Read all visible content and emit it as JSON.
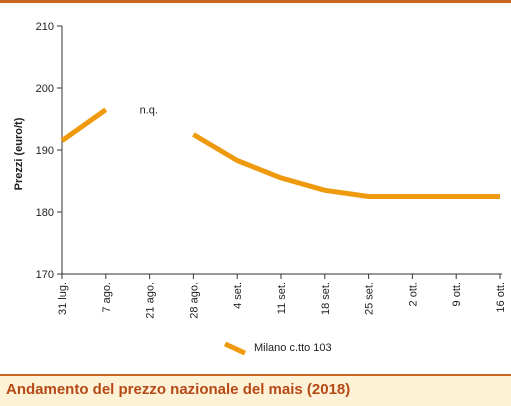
{
  "footer": {
    "title": "Andamento del prezzo nazionale del mais (2018)"
  },
  "chart_data": {
    "type": "line",
    "title": "",
    "ylabel": "Prezzi (euro/t)",
    "xlabel": "",
    "ylim": [
      170,
      210
    ],
    "yticks": [
      170,
      180,
      190,
      200,
      210
    ],
    "categories": [
      "31 lug.",
      "7 ago.",
      "21 ago.",
      "28 ago.",
      "4 set.",
      "11 set.",
      "18 set.",
      "25 set.",
      "2 ott.",
      "9 ott.",
      "16 ott."
    ],
    "grid": false,
    "legend_position": "bottom",
    "series": [
      {
        "name": "Milano  c.tto 103",
        "color": "#ef9a0d",
        "segments": [
          [
            [
              0,
              191.5
            ],
            [
              1,
              196.5
            ]
          ],
          [
            [
              3,
              192.5
            ],
            [
              4,
              188.3
            ],
            [
              5,
              185.5
            ],
            [
              6,
              183.5
            ],
            [
              7,
              182.5
            ],
            [
              8,
              182.5
            ],
            [
              9,
              182.5
            ],
            [
              10,
              182.5
            ]
          ]
        ]
      }
    ],
    "annotations": [
      {
        "text": "n.q.",
        "x": 2,
        "y": 196.5
      }
    ]
  }
}
